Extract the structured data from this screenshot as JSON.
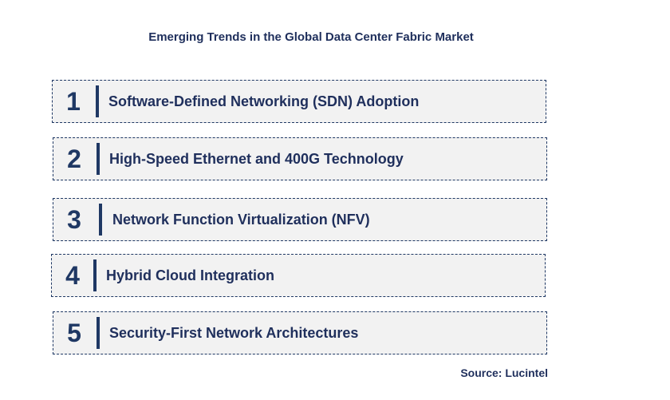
{
  "title": "Emerging Trends in the Global Data Center Fabric Market",
  "trends": [
    {
      "number": "1",
      "label": "Software-Defined Networking (SDN) Adoption"
    },
    {
      "number": "2",
      "label": "High-Speed Ethernet and 400G Technology"
    },
    {
      "number": "3",
      "label": "Network Function Virtualization (NFV)"
    },
    {
      "number": "4",
      "label": "Hybrid Cloud Integration"
    },
    {
      "number": "5",
      "label": "Security-First Network Architectures"
    }
  ],
  "source": "Source: Lucintel",
  "colors": {
    "accent": "#1f3864",
    "text": "#1f2f5c",
    "box_fill": "#f2f2f2"
  }
}
